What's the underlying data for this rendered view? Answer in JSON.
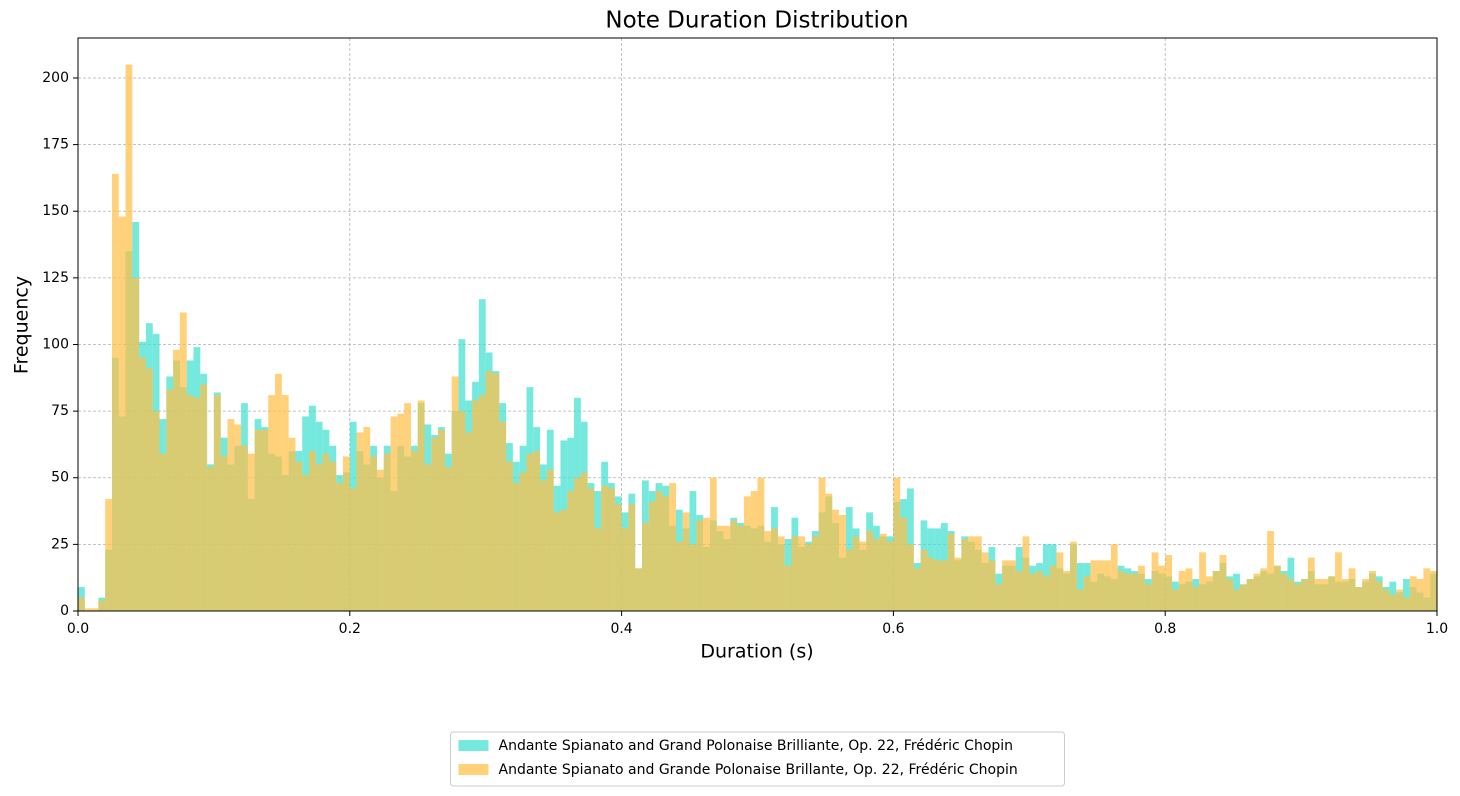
{
  "chart_data": {
    "type": "histogram",
    "title": "Note Duration Distribution",
    "x_label": "Duration (s)",
    "y_label": "Frequency",
    "bins": [
      0,
      0.005,
      0.01,
      0.015,
      0.02,
      0.025,
      0.03,
      0.035,
      0.04,
      0.045,
      0.05,
      0.055,
      0.06,
      0.065,
      0.07,
      0.075,
      0.08,
      0.085,
      0.09,
      0.095,
      0.1,
      0.105,
      0.11,
      0.115,
      0.12,
      0.125,
      0.13,
      0.135,
      0.14,
      0.145,
      0.15,
      0.155,
      0.16,
      0.165,
      0.17,
      0.175,
      0.18,
      0.185,
      0.19,
      0.195,
      0.2,
      0.205,
      0.21,
      0.215,
      0.22,
      0.225,
      0.23,
      0.235,
      0.24,
      0.245,
      0.25,
      0.255,
      0.26,
      0.265,
      0.27,
      0.275,
      0.28,
      0.285,
      0.29,
      0.295,
      0.3,
      0.305,
      0.31,
      0.315,
      0.32,
      0.325,
      0.33,
      0.335,
      0.34,
      0.345,
      0.35,
      0.355,
      0.36,
      0.365,
      0.37,
      0.375,
      0.38,
      0.385,
      0.39,
      0.395,
      0.4,
      0.405,
      0.41,
      0.415,
      0.42,
      0.425,
      0.43,
      0.435,
      0.44,
      0.445,
      0.45,
      0.455,
      0.46,
      0.465,
      0.47,
      0.475,
      0.48,
      0.485,
      0.49,
      0.495,
      0.5,
      0.505,
      0.51,
      0.515,
      0.52,
      0.525,
      0.53,
      0.535,
      0.54,
      0.545,
      0.55,
      0.555,
      0.56,
      0.565,
      0.57,
      0.575,
      0.58,
      0.585,
      0.59,
      0.595,
      0.6,
      0.605,
      0.61,
      0.615,
      0.62,
      0.625,
      0.63,
      0.635,
      0.64,
      0.645,
      0.65,
      0.655,
      0.66,
      0.665,
      0.67,
      0.675,
      0.68,
      0.685,
      0.69,
      0.695,
      0.7,
      0.705,
      0.71,
      0.715,
      0.72,
      0.725,
      0.73,
      0.735,
      0.74,
      0.745,
      0.75,
      0.755,
      0.76,
      0.765,
      0.77,
      0.775,
      0.78,
      0.785,
      0.79,
      0.795,
      0.8,
      0.805,
      0.81,
      0.815,
      0.82,
      0.825,
      0.83,
      0.835,
      0.84,
      0.845,
      0.85,
      0.855,
      0.86,
      0.865,
      0.87,
      0.875,
      0.88,
      0.885,
      0.89,
      0.895,
      0.9,
      0.905,
      0.91,
      0.915,
      0.92,
      0.925,
      0.93,
      0.935,
      0.94,
      0.945,
      0.95,
      0.955,
      0.96,
      0.965,
      0.97,
      0.975,
      0.98,
      0.985,
      0.99,
      0.995,
      1
    ],
    "series": [
      {
        "name": "Andante Spianato and Grand Polonaise Brilliante, Op. 22, Frédéric Chopin",
        "color": "#40e0d0",
        "values": [
          9,
          0,
          0,
          5,
          23,
          95,
          73,
          135,
          146,
          101,
          108,
          104,
          72,
          88,
          94,
          84,
          94,
          99,
          89,
          55,
          82,
          65,
          55,
          62,
          78,
          42,
          72,
          69,
          59,
          58,
          51,
          60,
          60,
          73,
          77,
          71,
          68,
          62,
          51,
          52,
          71,
          60,
          55,
          62,
          50,
          62,
          45,
          62,
          58,
          62,
          78,
          70,
          66,
          69,
          59,
          75,
          102,
          79,
          86,
          117,
          97,
          90,
          78,
          63,
          56,
          62,
          84,
          69,
          55,
          68,
          47,
          64,
          65,
          80,
          71,
          48,
          45,
          56,
          48,
          43,
          37,
          44,
          16,
          49,
          45,
          48,
          47,
          32,
          38,
          31,
          45,
          36,
          24,
          34,
          30,
          27,
          35,
          33,
          32,
          31,
          32,
          26,
          39,
          25,
          27,
          35,
          24,
          26,
          30,
          37,
          43,
          33,
          20,
          39,
          31,
          23,
          37,
          32,
          28,
          28,
          41,
          42,
          46,
          18,
          34,
          31,
          31,
          33,
          30,
          19,
          28,
          26,
          23,
          18,
          24,
          14,
          17,
          17,
          24,
          20,
          17,
          18,
          25,
          25,
          16,
          14,
          25,
          18,
          18,
          11,
          14,
          13,
          12,
          17,
          16,
          15,
          14,
          12,
          15,
          14,
          13,
          11,
          10,
          11,
          12,
          10,
          11,
          15,
          18,
          13,
          14,
          10,
          12,
          13,
          15,
          14,
          17,
          15,
          20,
          11,
          12,
          15,
          10,
          10,
          13,
          11,
          11,
          12,
          9,
          11,
          14,
          13,
          9,
          11,
          7,
          12,
          9,
          7,
          5,
          14
        ]
      },
      {
        "name": "Andante Spianato and Grande Polonaise Brillante, Op. 22, Frédéric Chopin",
        "color": "#ffbf47",
        "values": [
          5,
          1,
          1,
          4,
          42,
          164,
          148,
          205,
          125,
          95,
          91,
          75,
          59,
          83,
          98,
          112,
          81,
          80,
          85,
          54,
          81,
          58,
          72,
          70,
          62,
          59,
          68,
          68,
          81,
          89,
          81,
          65,
          56,
          51,
          60,
          55,
          59,
          56,
          48,
          58,
          46,
          67,
          69,
          58,
          53,
          59,
          73,
          74,
          78,
          60,
          79,
          55,
          65,
          68,
          54,
          88,
          75,
          67,
          79,
          81,
          90,
          89,
          71,
          56,
          48,
          52,
          59,
          60,
          49,
          53,
          37,
          38,
          45,
          50,
          52,
          46,
          31,
          47,
          46,
          40,
          31,
          40,
          16,
          33,
          41,
          45,
          43,
          48,
          26,
          37,
          25,
          34,
          35,
          50,
          32,
          32,
          34,
          32,
          43,
          45,
          50,
          30,
          31,
          28,
          17,
          28,
          28,
          25,
          28,
          50,
          44,
          38,
          36,
          23,
          28,
          26,
          30,
          27,
          29,
          26,
          50,
          35,
          25,
          16,
          23,
          20,
          19,
          19,
          29,
          20,
          27,
          28,
          28,
          22,
          19,
          10,
          19,
          19,
          15,
          28,
          14,
          15,
          13,
          17,
          22,
          15,
          26,
          8,
          13,
          19,
          19,
          19,
          25,
          15,
          14,
          14,
          17,
          10,
          22,
          17,
          21,
          8,
          15,
          16,
          9,
          22,
          13,
          15,
          21,
          12,
          8,
          10,
          12,
          14,
          16,
          30,
          17,
          14,
          12,
          10,
          12,
          20,
          12,
          12,
          13,
          22,
          12,
          16,
          9,
          12,
          15,
          11,
          8,
          6,
          8,
          5,
          13,
          12,
          16,
          15
        ]
      }
    ],
    "alpha": 0.72,
    "xlim": [
      0,
      1
    ],
    "ylim": [
      0,
      215
    ],
    "xticks": [
      {
        "value": 0,
        "label": "0.0"
      },
      0.2,
      0.4,
      0.6,
      0.8,
      {
        "value": 1,
        "label": "1.0"
      }
    ],
    "yticks": [
      0,
      25,
      50,
      75,
      100,
      125,
      150,
      175,
      200
    ],
    "grid": true,
    "legend": "lower center"
  }
}
